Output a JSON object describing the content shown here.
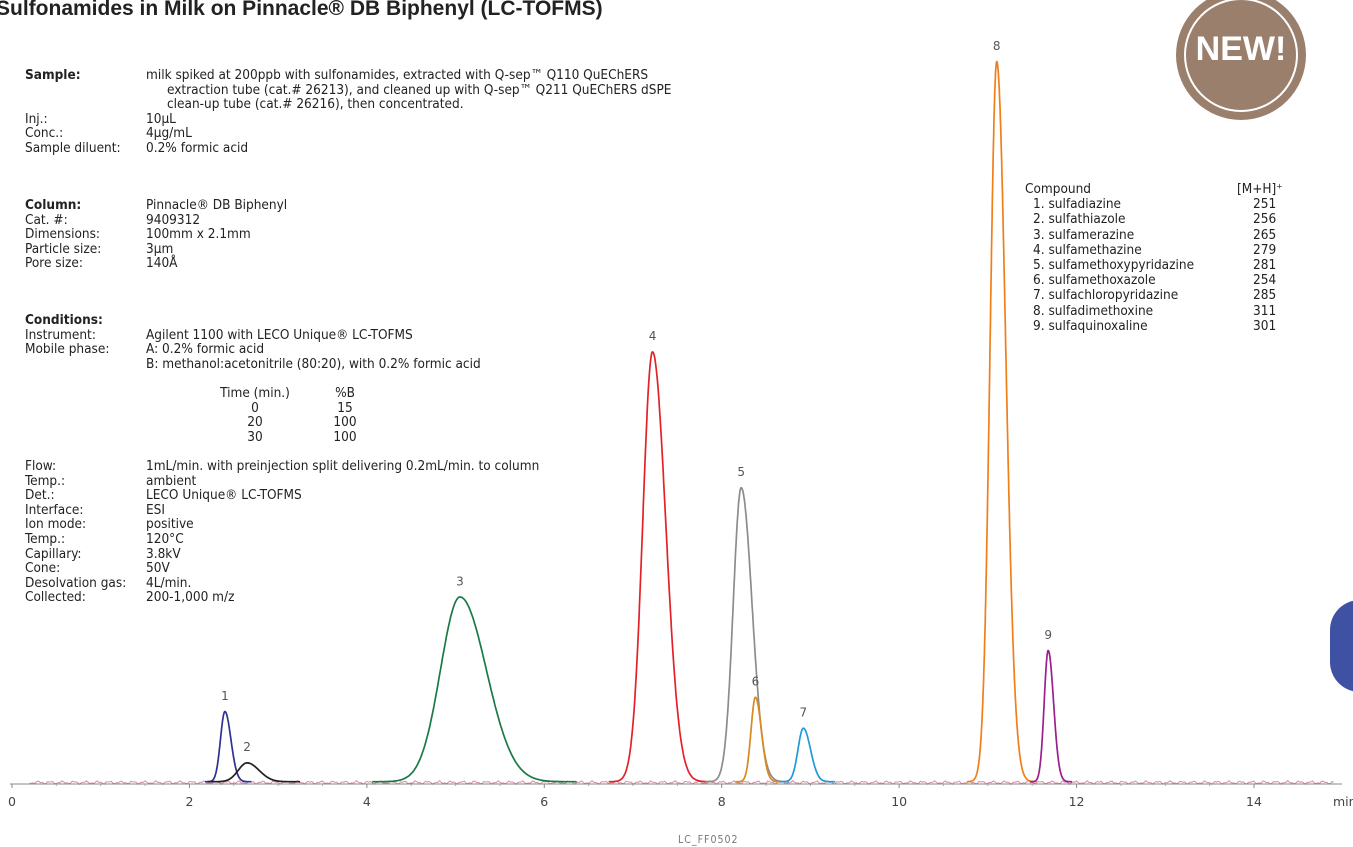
{
  "title": "Sulfonamides in Milk on Pinnacle® DB Biphenyl (LC-TOFMS)",
  "badge": "NEW!",
  "footer": "LC_FF0502",
  "sample": {
    "heading": "Sample:",
    "lines": [
      "milk spiked at 200ppb with sulfonamides, extracted with Q-sep™ Q110 QuEChERS",
      "extraction tube (cat.# 26213), and cleaned up with Q-sep™ Q211 QuEChERS dSPE",
      "clean-up tube (cat.# 26216), then concentrated."
    ],
    "inj_label": "Inj.:",
    "inj": "10µL",
    "conc_label": "Conc.:",
    "conc": "4µg/mL",
    "diluent_label": "Sample diluent:",
    "diluent": "0.2% formic acid"
  },
  "column": {
    "heading": "Column:",
    "name": "Pinnacle® DB Biphenyl",
    "cat_label": "Cat. #:",
    "cat": "9409312",
    "dim_label": "Dimensions:",
    "dim": "100mm x 2.1mm",
    "particle_label": "Particle size:",
    "particle": "3µm",
    "pore_label": "Pore size:",
    "pore": "140Å"
  },
  "conditions": {
    "heading": "Conditions:",
    "instrument_label": "Instrument:",
    "instrument": "Agilent 1100 with LECO Unique® LC-TOFMS",
    "mobile_label": "Mobile phase:",
    "mobile_a": "A:  0.2% formic acid",
    "mobile_b": "B:  methanol:acetonitrile (80:20), with 0.2% formic acid",
    "gradient_headers": [
      "Time (min.)",
      "%B"
    ],
    "gradient_rows": [
      [
        "0",
        "15"
      ],
      [
        "20",
        "100"
      ],
      [
        "30",
        "100"
      ]
    ],
    "flow_label": "Flow:",
    "flow": "1mL/min. with preinjection split delivering 0.2mL/min. to column",
    "temp_label": "Temp.:",
    "temp": "ambient",
    "det_label": "Det.:",
    "det": "LECO Unique® LC-TOFMS",
    "interface_label": "Interface:",
    "interface": "ESI",
    "ion_label": "Ion mode:",
    "ion": "positive",
    "temp2_label": "Temp.:",
    "temp2": "120°C",
    "capillary_label": "Capillary:",
    "capillary": "3.8kV",
    "cone_label": "Cone:",
    "cone": "50V",
    "desolv_label": "Desolvation gas:",
    "desolv": "4L/min.",
    "collected_label": "Collected:",
    "collected": "200-1,000 m/z"
  },
  "compound_table": {
    "header_name": "Compound",
    "header_mz": "[M+H]⁺",
    "rows": [
      {
        "name": "1. sulfadiazine",
        "mz": "251"
      },
      {
        "name": "2. sulfathiazole",
        "mz": "256"
      },
      {
        "name": "3. sulfamerazine",
        "mz": "265"
      },
      {
        "name": "4. sulfamethazine",
        "mz": "279"
      },
      {
        "name": "5. sulfamethoxypyridazine",
        "mz": "281"
      },
      {
        "name": "6. sulfamethoxazole",
        "mz": "254"
      },
      {
        "name": "7. sulfachloropyridazine",
        "mz": "285"
      },
      {
        "name": "8. sulfadimethoxine",
        "mz": "311"
      },
      {
        "name": "9. sulfaquinoxaline",
        "mz": "301"
      }
    ]
  },
  "chart_data": {
    "type": "line",
    "xlabel": "min",
    "xlim": [
      0,
      15
    ],
    "x_ticks": [
      0,
      2,
      4,
      6,
      8,
      10,
      12,
      14
    ],
    "ylim": [
      0,
      100
    ],
    "grid": false,
    "peaks": [
      {
        "label": "1",
        "rt": 2.4,
        "height": 9.3,
        "width": 0.05,
        "color": "#2e3192"
      },
      {
        "label": "2",
        "rt": 2.65,
        "height": 2.5,
        "width": 0.1,
        "color": "#231f20"
      },
      {
        "label": "3",
        "rt": 5.05,
        "height": 24.5,
        "width": 0.22,
        "color": "#1a7a45"
      },
      {
        "label": "4",
        "rt": 7.22,
        "height": 57.0,
        "width": 0.11,
        "color": "#e32227"
      },
      {
        "label": "5",
        "rt": 8.22,
        "height": 39.0,
        "width": 0.09,
        "color": "#8c8c8c"
      },
      {
        "label": "6",
        "rt": 8.38,
        "height": 11.2,
        "width": 0.05,
        "color": "#d9891e"
      },
      {
        "label": "7",
        "rt": 8.92,
        "height": 7.1,
        "width": 0.06,
        "color": "#1e9ad6"
      },
      {
        "label": "8",
        "rt": 11.1,
        "height": 95.5,
        "width": 0.075,
        "color": "#f07f1a"
      },
      {
        "label": "9",
        "rt": 11.68,
        "height": 17.4,
        "width": 0.045,
        "color": "#9b1f8e"
      }
    ]
  }
}
